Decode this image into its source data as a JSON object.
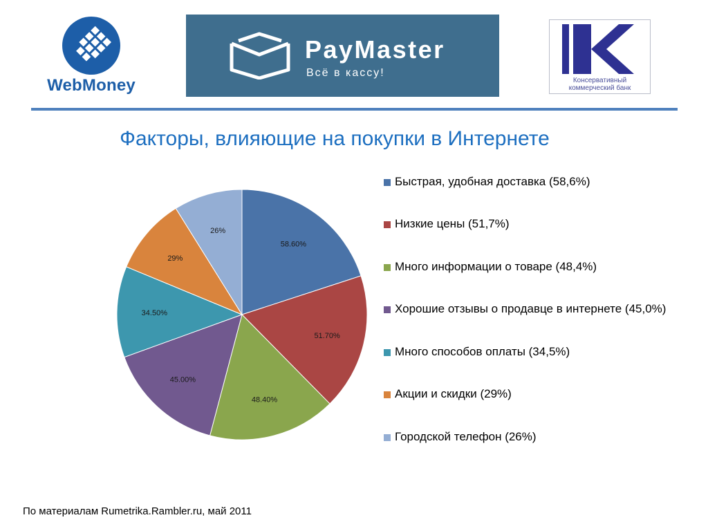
{
  "logos": {
    "webmoney": {
      "name": "WebMoney",
      "color": "#1d5ea8"
    },
    "paymaster": {
      "name": "PayMaster",
      "tagline": "Всё в кассу!",
      "background": "#3f6e8e"
    },
    "bank": {
      "name": "Консервативный коммерческий банк",
      "color": "#2e3192"
    }
  },
  "title": "Факторы, влияющие на покупки в Интернете",
  "source": "По материалам Rumetrika.Rambler.ru, май 2011",
  "chart_data": {
    "type": "pie",
    "start_angle_deg": 0,
    "direction": "clockwise",
    "slices": [
      {
        "name": "Быстрая, удобная доставка (58,6%)",
        "value": 58.6,
        "label": "58.60%",
        "color": "#4a73a8"
      },
      {
        "name": "Низкие цены (51,7%)",
        "value": 51.7,
        "label": "51.70%",
        "color": "#aa4644"
      },
      {
        "name": "Много информации о товаре (48,4%)",
        "value": 48.4,
        "label": "48.40%",
        "color": "#8aa64d"
      },
      {
        "name": "Хорошие отзывы о продавце в интернете (45,0%)",
        "value": 45.0,
        "label": "45.00%",
        "color": "#71598f"
      },
      {
        "name": "Много способов оплаты (34,5%)",
        "value": 34.5,
        "label": "34.50%",
        "color": "#3d97ae"
      },
      {
        "name": "Акции и скидки (29%)",
        "value": 29,
        "label": "29%",
        "color": "#d9843d"
      },
      {
        "name": "Городской телефон (26%)",
        "value": 26,
        "label": "26%",
        "color": "#94aed4"
      }
    ],
    "legend_position": "right"
  }
}
